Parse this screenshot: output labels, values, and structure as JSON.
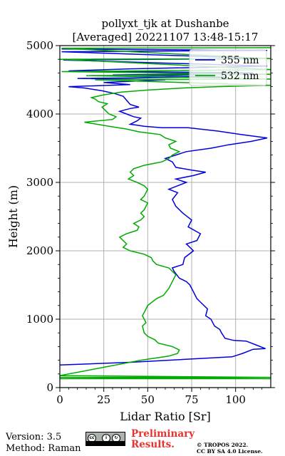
{
  "chart_data": {
    "type": "line",
    "title_line1": "pollyxt_tjk at Dushanbe",
    "title_line2": "[Averaged] 20221107 13:48-15:17",
    "xlabel": "Lidar Ratio [Sr]",
    "ylabel": "Height (m)",
    "xlim": [
      0,
      120
    ],
    "ylim": [
      0,
      5000
    ],
    "x_ticks": [
      0,
      25,
      50,
      75,
      100
    ],
    "y_ticks": [
      0,
      1000,
      2000,
      3000,
      4000,
      5000
    ],
    "grid": true,
    "legend_position": "top-right",
    "series": [
      {
        "name": "355 nm",
        "color": "#0000dd",
        "points": [
          [
            0,
            330
          ],
          [
            40,
            370
          ],
          [
            98,
            450
          ],
          [
            104,
            500
          ],
          [
            110,
            560
          ],
          [
            117,
            570
          ],
          [
            112,
            620
          ],
          [
            106,
            680
          ],
          [
            99,
            690
          ],
          [
            94,
            720
          ],
          [
            92,
            800
          ],
          [
            91,
            850
          ],
          [
            88,
            900
          ],
          [
            87,
            950
          ],
          [
            86,
            1000
          ],
          [
            83,
            1050
          ],
          [
            84,
            1150
          ],
          [
            80,
            1250
          ],
          [
            78,
            1300
          ],
          [
            77,
            1350
          ],
          [
            76,
            1400
          ],
          [
            74,
            1500
          ],
          [
            72,
            1550
          ],
          [
            68,
            1600
          ],
          [
            65,
            1700
          ],
          [
            64,
            1750
          ],
          [
            70,
            1800
          ],
          [
            71,
            1900
          ],
          [
            76,
            2000
          ],
          [
            72,
            2100
          ],
          [
            78,
            2150
          ],
          [
            80,
            2250
          ],
          [
            73,
            2350
          ],
          [
            75,
            2450
          ],
          [
            70,
            2550
          ],
          [
            66,
            2650
          ],
          [
            64,
            2750
          ],
          [
            67,
            2850
          ],
          [
            62,
            2900
          ],
          [
            72,
            3000
          ],
          [
            66,
            3050
          ],
          [
            76,
            3100
          ],
          [
            83,
            3150
          ],
          [
            75,
            3180
          ],
          [
            66,
            3220
          ],
          [
            64,
            3300
          ],
          [
            60,
            3350
          ],
          [
            66,
            3400
          ],
          [
            72,
            3450
          ],
          [
            86,
            3500
          ],
          [
            96,
            3550
          ],
          [
            109,
            3600
          ],
          [
            118,
            3650
          ],
          [
            103,
            3700
          ],
          [
            90,
            3750
          ],
          [
            73,
            3800
          ],
          [
            58,
            3800
          ],
          [
            48,
            3820
          ],
          [
            43,
            3840
          ],
          [
            40,
            3850
          ],
          [
            44,
            3900
          ],
          [
            46,
            3940
          ],
          [
            42,
            3960
          ],
          [
            38,
            4000
          ],
          [
            34,
            4040
          ],
          [
            40,
            4080
          ],
          [
            45,
            4100
          ],
          [
            40,
            4140
          ],
          [
            38,
            4200
          ],
          [
            36,
            4260
          ],
          [
            31,
            4300
          ],
          [
            24,
            4340
          ],
          [
            14,
            4380
          ],
          [
            5,
            4400
          ],
          [
            40,
            4430
          ],
          [
            25,
            4460
          ],
          [
            60,
            4500
          ],
          [
            10,
            4520
          ],
          [
            95,
            4540
          ],
          [
            30,
            4570
          ],
          [
            110,
            4600
          ],
          [
            5,
            4630
          ],
          [
            40,
            4660
          ],
          [
            118,
            4700
          ],
          [
            2,
            4790
          ],
          [
            118,
            4810
          ],
          [
            1,
            4910
          ],
          [
            118,
            4930
          ],
          [
            1,
            4950
          ]
        ]
      },
      {
        "name": "532 nm",
        "color": "#00aa00",
        "points": [
          [
            0,
            130
          ],
          [
            120,
            130
          ],
          [
            0,
            150
          ],
          [
            120,
            150
          ],
          [
            0,
            175
          ],
          [
            46,
            400
          ],
          [
            62,
            460
          ],
          [
            67,
            500
          ],
          [
            68,
            550
          ],
          [
            64,
            600
          ],
          [
            56,
            650
          ],
          [
            54,
            700
          ],
          [
            50,
            750
          ],
          [
            48,
            800
          ],
          [
            47,
            900
          ],
          [
            49,
            950
          ],
          [
            48,
            1000
          ],
          [
            47,
            1050
          ],
          [
            49,
            1150
          ],
          [
            50,
            1200
          ],
          [
            55,
            1300
          ],
          [
            59,
            1350
          ],
          [
            62,
            1450
          ],
          [
            64,
            1550
          ],
          [
            66,
            1650
          ],
          [
            62,
            1750
          ],
          [
            55,
            1800
          ],
          [
            53,
            1850
          ],
          [
            52,
            1900
          ],
          [
            48,
            1950
          ],
          [
            40,
            2000
          ],
          [
            36,
            2050
          ],
          [
            38,
            2100
          ],
          [
            34,
            2200
          ],
          [
            38,
            2250
          ],
          [
            44,
            2300
          ],
          [
            45,
            2350
          ],
          [
            42,
            2400
          ],
          [
            46,
            2450
          ],
          [
            48,
            2500
          ],
          [
            46,
            2550
          ],
          [
            48,
            2600
          ],
          [
            50,
            2700
          ],
          [
            46,
            2750
          ],
          [
            48,
            2800
          ],
          [
            50,
            2900
          ],
          [
            48,
            2950
          ],
          [
            44,
            3000
          ],
          [
            39,
            3050
          ],
          [
            42,
            3100
          ],
          [
            40,
            3150
          ],
          [
            42,
            3200
          ],
          [
            48,
            3250
          ],
          [
            54,
            3280
          ],
          [
            58,
            3300
          ],
          [
            62,
            3350
          ],
          [
            64,
            3400
          ],
          [
            68,
            3450
          ],
          [
            63,
            3500
          ],
          [
            62,
            3550
          ],
          [
            66,
            3600
          ],
          [
            60,
            3650
          ],
          [
            57,
            3700
          ],
          [
            45,
            3740
          ],
          [
            38,
            3780
          ],
          [
            28,
            3820
          ],
          [
            14,
            3880
          ],
          [
            30,
            3920
          ],
          [
            32,
            3960
          ],
          [
            28,
            4000
          ],
          [
            26,
            4050
          ],
          [
            24,
            4100
          ],
          [
            27,
            4150
          ],
          [
            22,
            4180
          ],
          [
            20,
            4220
          ],
          [
            18,
            4240
          ],
          [
            25,
            4280
          ],
          [
            35,
            4320
          ],
          [
            50,
            4350
          ],
          [
            70,
            4380
          ],
          [
            90,
            4400
          ],
          [
            120,
            4420
          ],
          [
            20,
            4500
          ],
          [
            120,
            4510
          ],
          [
            15,
            4560
          ],
          [
            120,
            4580
          ],
          [
            1,
            4620
          ],
          [
            120,
            4650
          ],
          [
            0,
            4800
          ],
          [
            120,
            4810
          ],
          [
            1,
            4960
          ],
          [
            120,
            4970
          ]
        ]
      }
    ]
  },
  "footer": {
    "version": "Version: 3.5",
    "method": "Method: Raman",
    "preliminary_line1": "Preliminary",
    "preliminary_line2": "Results.",
    "copyright_line1": "© TROPOS 2022.",
    "copyright_line2": "CC BY SA 4.0 License."
  },
  "license_badge": {
    "icons": [
      "cc",
      "by",
      "sa"
    ],
    "sublabels": [
      "BY",
      "SA"
    ]
  }
}
